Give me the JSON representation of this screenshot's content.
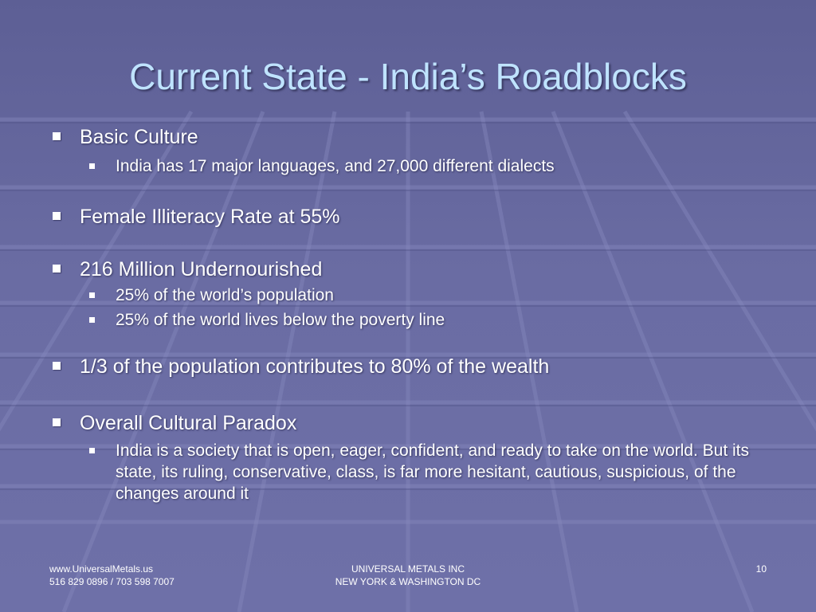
{
  "slide": {
    "title": "Current State - India’s Roadblocks",
    "bullets": [
      {
        "text": "Basic Culture",
        "sub": [
          "India has 17 major languages, and 27,000 different dialects"
        ]
      },
      {
        "text": "Female Illiteracy Rate at 55%",
        "sub": []
      },
      {
        "text": "216 Million Undernourished",
        "sub": [
          "25% of the world’s population",
          "25% of the world lives below the poverty line"
        ]
      },
      {
        "text": "1/3 of the population contributes to 80% of the wealth",
        "sub": []
      },
      {
        "text": "Overall Cultural Paradox",
        "sub": [
          "India is a society that is open, eager, confident, and ready to take on the world. But its state, its ruling, conservative, class, is far more hesitant, cautious, suspicious, of the changes around it"
        ]
      }
    ]
  },
  "footer": {
    "left_line1": "www.UniversalMetals.us",
    "left_line2": "516 829 0896 / 703 598 7007",
    "center_line1": "UNIVERSAL METALS INC",
    "center_line2": "NEW YORK & WASHINGTON DC",
    "page_number": "10"
  },
  "colors": {
    "background": "#6a6ca3",
    "title": "#bfe3ff",
    "text": "#ffffff"
  }
}
